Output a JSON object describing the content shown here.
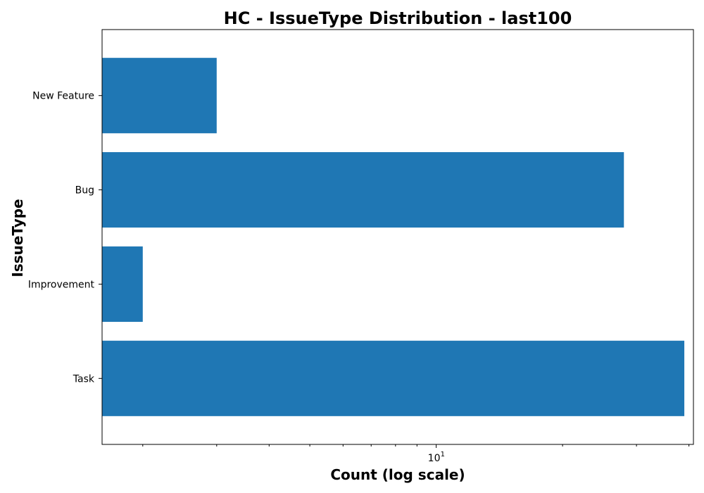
{
  "chart_data": {
    "type": "bar",
    "orientation": "horizontal",
    "title": "HC - IssueType Distribution - last100",
    "xlabel": "Count (log scale)",
    "ylabel": "IssueType",
    "xscale": "log",
    "xlim": [
      1.6,
      41
    ],
    "categories": [
      "Task",
      "Improvement",
      "Bug",
      "New Feature"
    ],
    "values": [
      39,
      2,
      28,
      3
    ],
    "x_major_ticks": [
      {
        "value": 10,
        "base": "10",
        "exponent": "1"
      }
    ],
    "x_minor_ticks": [
      2,
      3,
      4,
      5,
      6,
      7,
      8,
      9,
      20,
      30,
      40
    ],
    "grid": false,
    "legend": "none",
    "colors": {
      "bar": "#1f77b4",
      "axes": "#000000",
      "background": "#ffffff"
    }
  }
}
